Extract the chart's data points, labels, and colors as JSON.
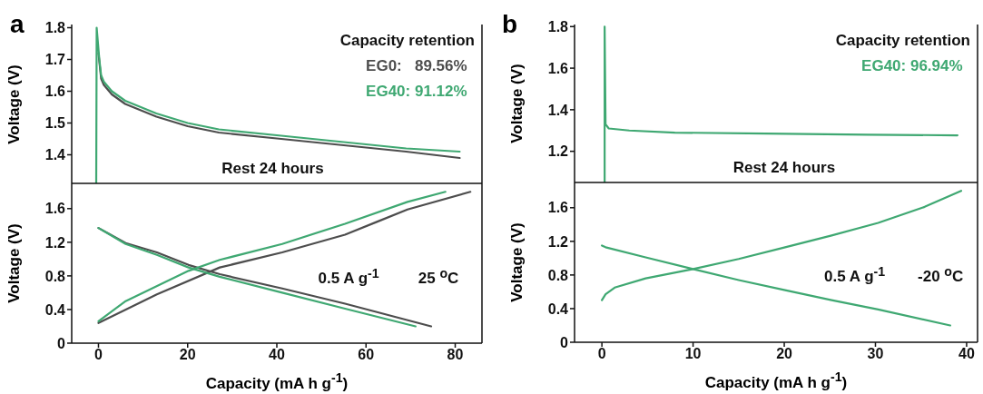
{
  "chart_data": [
    {
      "type": "line",
      "title": "a",
      "ylabel": "Voltage (V)",
      "legend_title": "Capacity retention",
      "legend": "top right",
      "annotations": [
        "Rest 24 hours"
      ],
      "xlim": [
        -6,
        86
      ],
      "xticks": [
        0,
        20,
        40,
        60,
        80
      ],
      "ylim": [
        1.31,
        1.81
      ],
      "yticks": [
        1.4,
        1.5,
        1.6,
        1.7,
        1.8
      ],
      "tick_labels": "y",
      "grid": false,
      "marker": "none",
      "line_style": "solid",
      "series": [
        {
          "name": "EG0:   89.56%",
          "color": "#4d4d4d",
          "x": [
            0,
            0.6,
            1.2,
            3,
            6,
            13,
            20,
            27,
            41,
            55,
            69,
            81
          ],
          "values": [
            1.72,
            1.64,
            1.62,
            1.59,
            1.56,
            1.52,
            1.49,
            1.47,
            1.45,
            1.43,
            1.41,
            1.39
          ]
        },
        {
          "name": "EG40: 91.12%",
          "color": "#3fa872",
          "x": [
            -0.5,
            -0.4,
            0.2,
            0.6,
            1.2,
            3,
            6,
            13,
            20,
            27,
            41,
            55,
            69,
            81
          ],
          "values": [
            1.31,
            1.8,
            1.7,
            1.65,
            1.63,
            1.6,
            1.57,
            1.53,
            1.5,
            1.48,
            1.46,
            1.44,
            1.42,
            1.41
          ]
        }
      ]
    },
    {
      "type": "line",
      "xlabel": "Capacity (mA h g$^{-1}$)",
      "ylabel": "Voltage (V)",
      "annotations": [
        "0.5 A g$^{-1}$",
        "25 $^{o}$C"
      ],
      "xlim": [
        -6,
        86
      ],
      "xticks": [
        0,
        20,
        40,
        60,
        80
      ],
      "ylim": [
        0,
        1.9
      ],
      "yticks": [
        0,
        {
          "value": 0.4,
          "label": "0.4"
        },
        {
          "value": 0.8,
          "label": "0.8"
        },
        {
          "value": 1.2,
          "label": "1.2"
        },
        {
          "value": 1.6,
          "label": "1.6"
        }
      ],
      "grid": false,
      "marker": "none",
      "line_style": "solid",
      "series": [
        {
          "color": "#4d4d4d",
          "x": [
            0,
            13.1,
            27.2,
            41.2,
            55.3,
            62.3,
            69.3,
            83.4
          ],
          "values": [
            0.24,
            0.58,
            0.9,
            1.08,
            1.29,
            1.44,
            1.59,
            1.8
          ]
        },
        {
          "color": "#4d4d4d",
          "x": [
            0,
            6.1,
            13.1,
            20.2,
            27.2,
            41.2,
            55.3,
            74.6
          ],
          "values": [
            1.37,
            1.19,
            1.08,
            0.93,
            0.82,
            0.65,
            0.47,
            0.2
          ]
        },
        {
          "color": "#3fa872",
          "x": [
            0,
            6.1,
            20.2,
            27.2,
            41.2,
            55.3,
            69.3,
            77.8
          ],
          "values": [
            0.26,
            0.5,
            0.86,
            0.99,
            1.18,
            1.42,
            1.68,
            1.8
          ]
        },
        {
          "color": "#3fa872",
          "x": [
            0,
            6.1,
            13.1,
            20.2,
            27.2,
            41.2,
            55.3,
            71.1
          ],
          "values": [
            1.37,
            1.18,
            1.05,
            0.9,
            0.79,
            0.6,
            0.41,
            0.2
          ]
        }
      ]
    },
    {
      "type": "line",
      "title": "b",
      "ylabel": "Voltage (V)",
      "legend_title": "Capacity retention",
      "legend": "top right",
      "annotations": [
        "Rest 24 hours"
      ],
      "xlim": [
        -3,
        41.2
      ],
      "xticks": [
        0,
        10,
        20,
        30,
        40
      ],
      "ylim": [
        1.05,
        1.81
      ],
      "yticks": [
        1.2,
        1.4,
        1.6,
        1.8
      ],
      "tick_labels": "y",
      "grid": false,
      "marker": "none",
      "line_style": "solid",
      "series": [
        {
          "name": "EG40: 96.94%",
          "color": "#3fa872",
          "x": [
            0.3,
            0.3,
            0.4,
            0.75,
            3,
            8,
            18,
            29,
            39
          ],
          "values": [
            1.05,
            1.8,
            1.33,
            1.31,
            1.3,
            1.29,
            1.285,
            1.28,
            1.277
          ]
        }
      ]
    },
    {
      "type": "line",
      "xlabel": "Capacity (mA h g$^{-1}$)",
      "ylabel": "Voltage (V)",
      "annotations": [
        "0.5 A g$^{-1}$",
        "-20 $^{o}$C"
      ],
      "xlim": [
        -3,
        41.2
      ],
      "xticks": [
        0,
        10,
        20,
        30,
        40
      ],
      "ylim": [
        0,
        1.9
      ],
      "yticks": [
        0,
        {
          "value": 0.4,
          "label": "0.4"
        },
        {
          "value": 0.8,
          "label": "0.8"
        },
        {
          "value": 1.2,
          "label": "1.2"
        },
        {
          "value": 1.6,
          "label": "1.6"
        }
      ],
      "grid": false,
      "marker": "none",
      "line_style": "solid",
      "series": [
        {
          "color": "#3fa872",
          "x": [
            0,
            0.4,
            1.4,
            4.8,
            10,
            15,
            20.1,
            25.2,
            30.3,
            35.4,
            39.4
          ],
          "values": [
            0.5,
            0.57,
            0.65,
            0.76,
            0.87,
            0.99,
            1.13,
            1.27,
            1.42,
            1.61,
            1.8
          ]
        },
        {
          "color": "#3fa872",
          "x": [
            0,
            0.4,
            4.8,
            10,
            15,
            20.1,
            25.2,
            30.3,
            38.2
          ],
          "values": [
            1.15,
            1.13,
            1.01,
            0.87,
            0.74,
            0.62,
            0.5,
            0.39,
            0.2
          ]
        }
      ]
    }
  ]
}
